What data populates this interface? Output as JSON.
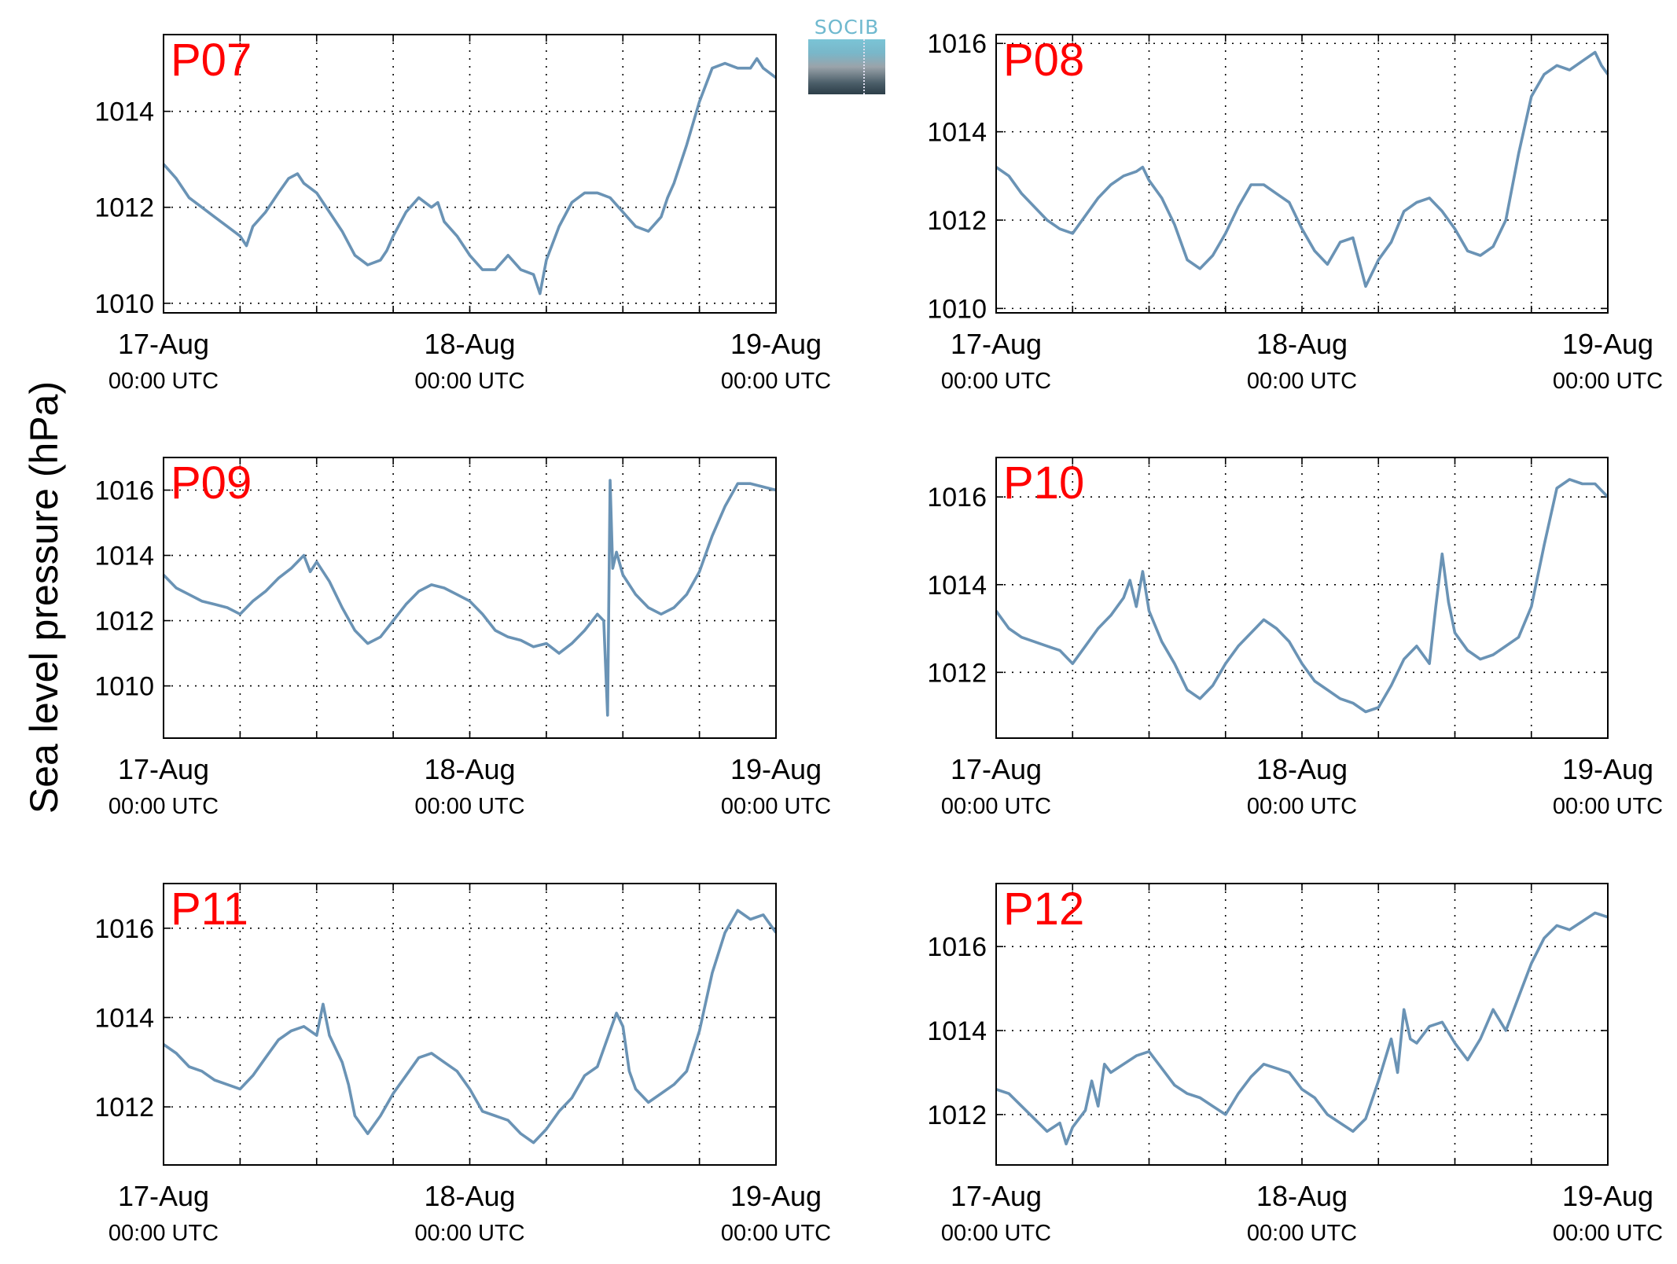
{
  "figure": {
    "ylabel": "Sea level pressure (hPa)",
    "logo_text": "SOCIB",
    "line_color": "#6a93b5",
    "label_color": "#ff0000"
  },
  "chart_data": [
    {
      "type": "line",
      "name": "P07",
      "x_tick_labels": [
        [
          "17-Aug",
          "00:00 UTC"
        ],
        [
          "18-Aug",
          "00:00 UTC"
        ],
        [
          "19-Aug",
          "00:00 UTC"
        ]
      ],
      "x_range_hours": [
        0,
        48
      ],
      "ylim": [
        1009.8,
        1015.6
      ],
      "yticks": [
        1010,
        1012,
        1014
      ],
      "x": [
        0,
        1,
        2,
        3,
        4,
        5,
        6,
        6.5,
        7,
        8,
        9,
        9.8,
        10.5,
        11,
        12,
        13,
        14,
        15,
        16,
        17,
        17.5,
        18,
        19,
        20,
        21,
        21.5,
        22,
        23,
        24,
        25,
        26,
        27,
        28,
        29,
        29.5,
        30,
        31,
        32,
        33,
        34,
        35,
        36,
        37,
        38,
        39,
        39.5,
        40,
        41,
        42,
        43,
        44,
        45,
        46,
        46.5,
        47,
        47.5,
        48
      ],
      "y": [
        1012.9,
        1012.6,
        1012.2,
        1012.0,
        1011.8,
        1011.6,
        1011.4,
        1011.2,
        1011.6,
        1011.9,
        1012.3,
        1012.6,
        1012.7,
        1012.5,
        1012.3,
        1011.9,
        1011.5,
        1011.0,
        1010.8,
        1010.9,
        1011.1,
        1011.4,
        1011.9,
        1012.2,
        1012.0,
        1012.1,
        1011.7,
        1011.4,
        1011.0,
        1010.7,
        1010.7,
        1011.0,
        1010.7,
        1010.6,
        1010.2,
        1010.9,
        1011.6,
        1012.1,
        1012.3,
        1012.3,
        1012.2,
        1011.9,
        1011.6,
        1011.5,
        1011.8,
        1012.2,
        1012.5,
        1013.3,
        1014.2,
        1014.9,
        1015.0,
        1014.9,
        1014.9,
        1015.1,
        1014.9,
        1014.8,
        1014.7
      ]
    },
    {
      "type": "line",
      "name": "P08",
      "x_tick_labels": [
        [
          "17-Aug",
          "00:00 UTC"
        ],
        [
          "18-Aug",
          "00:00 UTC"
        ],
        [
          "19-Aug",
          "00:00 UTC"
        ]
      ],
      "x_range_hours": [
        0,
        48
      ],
      "ylim": [
        1009.9,
        1016.2
      ],
      "yticks": [
        1010,
        1012,
        1014,
        1016
      ],
      "x": [
        0,
        1,
        2,
        3,
        4,
        5,
        6,
        7,
        8,
        9,
        10,
        11,
        11.5,
        12,
        13,
        14,
        15,
        16,
        17,
        18,
        19,
        20,
        21,
        22,
        23,
        24,
        25,
        26,
        27,
        28,
        29,
        30,
        31,
        32,
        33,
        34,
        35,
        36,
        37,
        38,
        39,
        40,
        41,
        42,
        43,
        44,
        45,
        46,
        47,
        47.5,
        48
      ],
      "y": [
        1013.2,
        1013.0,
        1012.6,
        1012.3,
        1012.0,
        1011.8,
        1011.7,
        1012.1,
        1012.5,
        1012.8,
        1013.0,
        1013.1,
        1013.2,
        1012.9,
        1012.5,
        1011.9,
        1011.1,
        1010.9,
        1011.2,
        1011.7,
        1012.3,
        1012.8,
        1012.8,
        1012.6,
        1012.4,
        1011.8,
        1011.3,
        1011.0,
        1011.5,
        1011.6,
        1010.5,
        1011.1,
        1011.5,
        1012.2,
        1012.4,
        1012.5,
        1012.2,
        1011.8,
        1011.3,
        1011.2,
        1011.4,
        1012.0,
        1013.5,
        1014.8,
        1015.3,
        1015.5,
        1015.4,
        1015.6,
        1015.8,
        1015.5,
        1015.3
      ]
    },
    {
      "type": "line",
      "name": "P09",
      "x_tick_labels": [
        [
          "17-Aug",
          "00:00 UTC"
        ],
        [
          "18-Aug",
          "00:00 UTC"
        ],
        [
          "19-Aug",
          "00:00 UTC"
        ]
      ],
      "x_range_hours": [
        0,
        48
      ],
      "ylim": [
        1008.4,
        1017.0
      ],
      "yticks": [
        1010,
        1012,
        1014,
        1016
      ],
      "x": [
        0,
        1,
        2,
        3,
        4,
        5,
        6,
        7,
        8,
        9,
        10,
        11,
        11.5,
        12,
        13,
        14,
        15,
        16,
        17,
        18,
        19,
        20,
        21,
        22,
        23,
        24,
        25,
        26,
        27,
        28,
        29,
        30,
        31,
        32,
        33,
        34,
        34.5,
        34.8,
        35.0,
        35.2,
        35.5,
        36,
        37,
        38,
        39,
        40,
        41,
        42,
        43,
        44,
        45,
        46,
        47,
        48
      ],
      "y": [
        1013.4,
        1013.0,
        1012.8,
        1012.6,
        1012.5,
        1012.4,
        1012.2,
        1012.6,
        1012.9,
        1013.3,
        1013.6,
        1014.0,
        1013.5,
        1013.8,
        1013.2,
        1012.4,
        1011.7,
        1011.3,
        1011.5,
        1012.0,
        1012.5,
        1012.9,
        1013.1,
        1013.0,
        1012.8,
        1012.6,
        1012.2,
        1011.7,
        1011.5,
        1011.4,
        1011.2,
        1011.3,
        1011.0,
        1011.3,
        1011.7,
        1012.2,
        1012.0,
        1009.1,
        1016.3,
        1013.6,
        1014.1,
        1013.4,
        1012.8,
        1012.4,
        1012.2,
        1012.4,
        1012.8,
        1013.5,
        1014.6,
        1015.5,
        1016.2,
        1016.2,
        1016.1,
        1016.0
      ]
    },
    {
      "type": "line",
      "name": "P10",
      "x_tick_labels": [
        [
          "17-Aug",
          "00:00 UTC"
        ],
        [
          "18-Aug",
          "00:00 UTC"
        ],
        [
          "19-Aug",
          "00:00 UTC"
        ]
      ],
      "x_range_hours": [
        0,
        48
      ],
      "ylim": [
        1010.5,
        1016.9
      ],
      "yticks": [
        1012,
        1014,
        1016
      ],
      "x": [
        0,
        1,
        2,
        3,
        4,
        5,
        6,
        7,
        8,
        9,
        10,
        10.5,
        11,
        11.5,
        12,
        13,
        14,
        15,
        16,
        17,
        18,
        19,
        20,
        21,
        22,
        23,
        24,
        25,
        26,
        27,
        28,
        29,
        30,
        31,
        32,
        33,
        34,
        34.5,
        35,
        35.5,
        36,
        37,
        38,
        39,
        40,
        41,
        42,
        43,
        44,
        45,
        46,
        47,
        48
      ],
      "y": [
        1013.4,
        1013.0,
        1012.8,
        1012.7,
        1012.6,
        1012.5,
        1012.2,
        1012.6,
        1013.0,
        1013.3,
        1013.7,
        1014.1,
        1013.5,
        1014.3,
        1013.4,
        1012.7,
        1012.2,
        1011.6,
        1011.4,
        1011.7,
        1012.2,
        1012.6,
        1012.9,
        1013.2,
        1013.0,
        1012.7,
        1012.2,
        1011.8,
        1011.6,
        1011.4,
        1011.3,
        1011.1,
        1011.2,
        1011.7,
        1012.3,
        1012.6,
        1012.2,
        1013.5,
        1014.7,
        1013.6,
        1012.9,
        1012.5,
        1012.3,
        1012.4,
        1012.6,
        1012.8,
        1013.5,
        1014.9,
        1016.2,
        1016.4,
        1016.3,
        1016.3,
        1016.0
      ]
    },
    {
      "type": "line",
      "name": "P11",
      "x_tick_labels": [
        [
          "17-Aug",
          "00:00 UTC"
        ],
        [
          "18-Aug",
          "00:00 UTC"
        ],
        [
          "19-Aug",
          "00:00 UTC"
        ]
      ],
      "x_range_hours": [
        0,
        48
      ],
      "ylim": [
        1010.7,
        1017.0
      ],
      "yticks": [
        1012,
        1014,
        1016
      ],
      "x": [
        0,
        1,
        2,
        3,
        4,
        5,
        6,
        7,
        8,
        9,
        10,
        11,
        12,
        12.5,
        13,
        14,
        14.5,
        15,
        16,
        17,
        18,
        19,
        20,
        21,
        22,
        23,
        24,
        25,
        26,
        27,
        28,
        29,
        30,
        31,
        32,
        33,
        34,
        35,
        35.5,
        36,
        36.5,
        37,
        38,
        39,
        40,
        41,
        42,
        43,
        44,
        45,
        46,
        47,
        48
      ],
      "y": [
        1013.4,
        1013.2,
        1012.9,
        1012.8,
        1012.6,
        1012.5,
        1012.4,
        1012.7,
        1013.1,
        1013.5,
        1013.7,
        1013.8,
        1013.6,
        1014.3,
        1013.6,
        1013.0,
        1012.5,
        1011.8,
        1011.4,
        1011.8,
        1012.3,
        1012.7,
        1013.1,
        1013.2,
        1013.0,
        1012.8,
        1012.4,
        1011.9,
        1011.8,
        1011.7,
        1011.4,
        1011.2,
        1011.5,
        1011.9,
        1012.2,
        1012.7,
        1012.9,
        1013.7,
        1014.1,
        1013.8,
        1012.8,
        1012.4,
        1012.1,
        1012.3,
        1012.5,
        1012.8,
        1013.7,
        1015.0,
        1015.9,
        1016.4,
        1016.2,
        1016.3,
        1015.9
      ]
    },
    {
      "type": "line",
      "name": "P12",
      "x_tick_labels": [
        [
          "17-Aug",
          "00:00 UTC"
        ],
        [
          "18-Aug",
          "00:00 UTC"
        ],
        [
          "19-Aug",
          "00:00 UTC"
        ]
      ],
      "x_range_hours": [
        0,
        48
      ],
      "ylim": [
        1010.8,
        1017.5
      ],
      "yticks": [
        1012,
        1014,
        1016
      ],
      "x": [
        0,
        1,
        2,
        3,
        4,
        5,
        5.5,
        6,
        7,
        7.5,
        8,
        8.5,
        9,
        10,
        11,
        12,
        13,
        14,
        15,
        16,
        17,
        18,
        19,
        20,
        21,
        22,
        23,
        24,
        25,
        26,
        27,
        28,
        29,
        30,
        31,
        31.5,
        32,
        32.5,
        33,
        34,
        35,
        36,
        37,
        38,
        39,
        40,
        41,
        42,
        43,
        44,
        45,
        46,
        47,
        48
      ],
      "y": [
        1012.6,
        1012.5,
        1012.2,
        1011.9,
        1011.6,
        1011.8,
        1011.3,
        1011.7,
        1012.1,
        1012.8,
        1012.2,
        1013.2,
        1013.0,
        1013.2,
        1013.4,
        1013.5,
        1013.1,
        1012.7,
        1012.5,
        1012.4,
        1012.2,
        1012.0,
        1012.5,
        1012.9,
        1013.2,
        1013.1,
        1013.0,
        1012.6,
        1012.4,
        1012.0,
        1011.8,
        1011.6,
        1011.9,
        1012.8,
        1013.8,
        1013.0,
        1014.5,
        1013.8,
        1013.7,
        1014.1,
        1014.2,
        1013.7,
        1013.3,
        1013.8,
        1014.5,
        1014.0,
        1014.8,
        1015.6,
        1016.2,
        1016.5,
        1016.4,
        1016.6,
        1016.8,
        1016.7
      ]
    }
  ]
}
